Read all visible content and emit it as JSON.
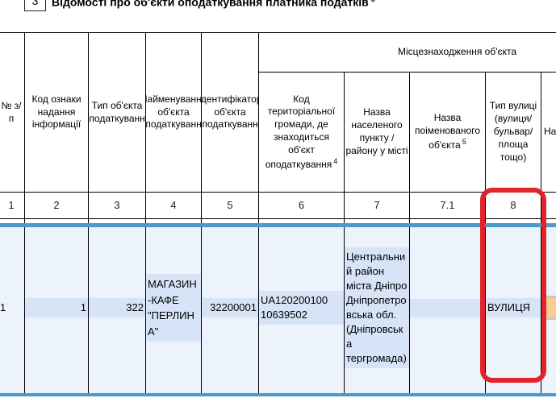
{
  "section": {
    "number": "3",
    "title": "Відомості про об'єкти оподаткування платника податків",
    "title_sup": "3"
  },
  "table": {
    "group_header": "Місцезнаходження об'єкта",
    "columns": [
      {
        "label": "№ з/п",
        "num": "1"
      },
      {
        "label": "Код ознаки надання інформації",
        "num": "2"
      },
      {
        "label": "Тип об'єкта оподаткування",
        "num": "3"
      },
      {
        "label": "Найменування об'єкта оподаткування",
        "num": "4"
      },
      {
        "label": "Ідентифікатор об'єкта оподаткування",
        "num": "5"
      },
      {
        "label": "Код територіальної громади, де знаходиться об'єкт оподаткування",
        "sup": "4",
        "num": "6"
      },
      {
        "label": "Назва населеного пункту / району у місті",
        "num": "7"
      },
      {
        "label": "Назва поіменованого об'єкта",
        "sup": "5",
        "num": "7.1"
      },
      {
        "label": "Тип вулиці (вулиця/бульвар/площа тощо)",
        "num": "8"
      },
      {
        "label": "Назва вулиці",
        "num": ""
      }
    ],
    "row": {
      "np": "1",
      "kod_oznaky": "1",
      "typ_obiekta": "322",
      "naimenuvannia": "МАГАЗИН-КАФЕ \"ПЕРЛИНА\"",
      "identyfikator": "32200001",
      "kod_hromady": "UA12020010010639502",
      "nazva_punktu": "Центральний район міста Дніпро Дніпропетровська обл. (Дніпровська тергромада)",
      "nazva_poimenovanoho": "",
      "typ_vulytsi": "ВУЛИЦЯ"
    }
  },
  "colors": {
    "selection_border": "#4d97c9",
    "row_background": "#edf3fb",
    "cell_highlight": "#d7e4f7",
    "annotation_red": "#e3222a",
    "partial_input_orange": "#f9cd8e",
    "grid_border": "#000000"
  }
}
